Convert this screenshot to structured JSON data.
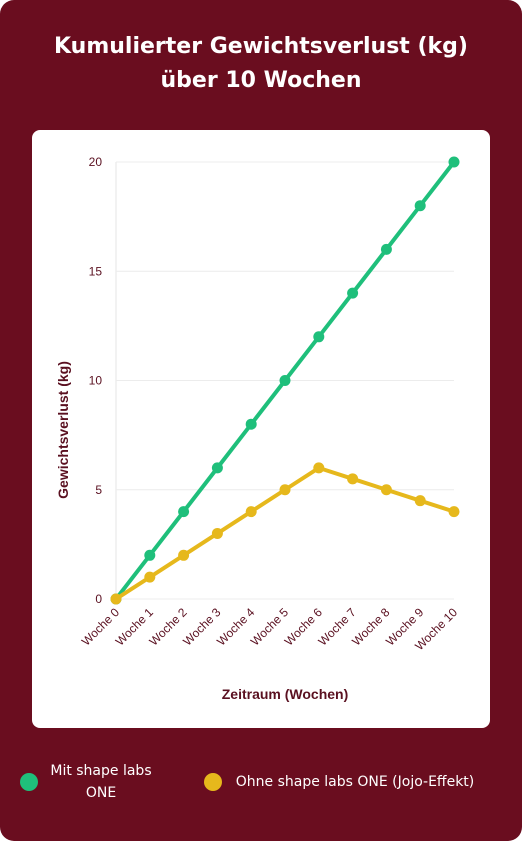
{
  "chart_data": {
    "type": "line",
    "title": "Kumulierter Gewichtsverlust (kg) über 10 Wochen",
    "categories": [
      "Woche 0",
      "Woche 1",
      "Woche 2",
      "Woche 3",
      "Woche 4",
      "Woche 5",
      "Woche 6",
      "Woche 7",
      "Woche 8",
      "Woche 9",
      "Woche 10"
    ],
    "series": [
      {
        "name": "Mit shape labs ONE",
        "color": "#1fbf7b",
        "values": [
          0,
          2,
          4,
          6,
          8,
          10,
          12,
          14,
          16,
          18,
          20
        ]
      },
      {
        "name": "Ohne shape labs ONE (Jojo-Effekt)",
        "color": "#e6b81c",
        "values": [
          0,
          1,
          2,
          3,
          4,
          5,
          6,
          5.5,
          5,
          4.5,
          4
        ]
      }
    ],
    "ylabel": "Gewichtsverlust (kg)",
    "xlabel": "Zeitraum (Wochen)",
    "ylim": [
      0,
      20
    ],
    "yticks": [
      0,
      5,
      10,
      15,
      20
    ],
    "grid": true,
    "legend": "bottom"
  }
}
